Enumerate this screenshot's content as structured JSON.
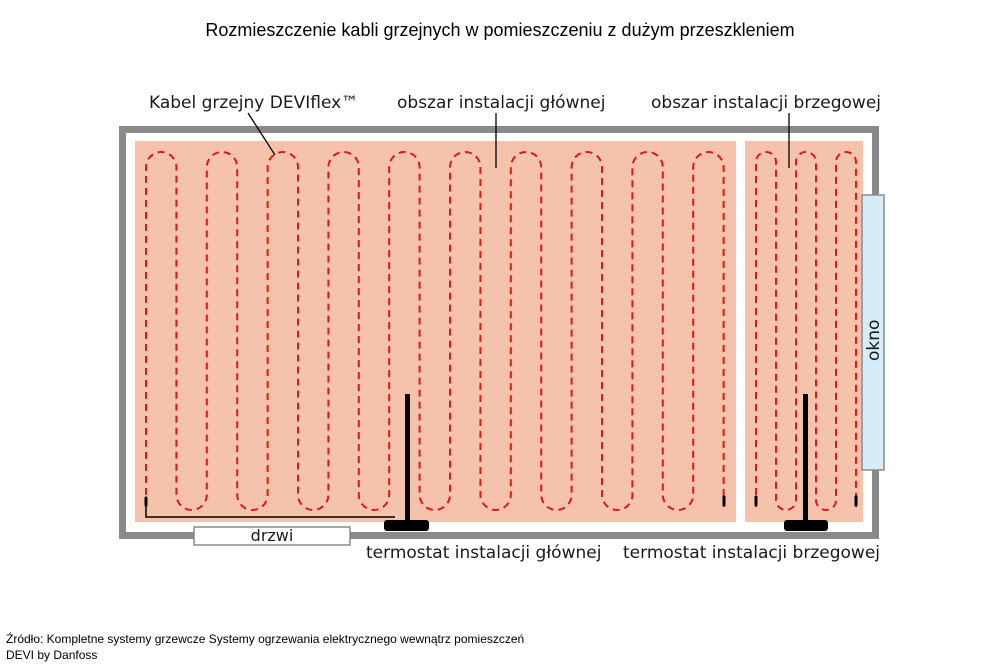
{
  "title": "Rozmieszczenie kabli grzejnych w pomieszczeniu z dużym przeszkleniem",
  "labels": {
    "cable": "Kabel grzejny DEVIflex™",
    "main_area": "obszar instalacji głównej",
    "edge_area": "obszar instalacji brzegowej",
    "window": "okno",
    "door": "drzwi",
    "main_thermostat": "termostat instalacji głównej",
    "edge_thermostat": "termostat instalacji brzegowej"
  },
  "source": {
    "line1": "Źródło: Kompletne systemy grzewcze Systemy ogrzewania elektrycznego wewnątrz pomieszczeń",
    "line2": "DEVI by Danfoss"
  },
  "colors": {
    "wall": "#8a8a8a",
    "floor_area": "#f5c3ab",
    "cable": "#e01818",
    "window": "#d6ecf8",
    "leader": "#000000"
  },
  "icons": [
    "thermostat-icon",
    "thermostat-icon",
    "window-icon",
    "door-icon"
  ]
}
